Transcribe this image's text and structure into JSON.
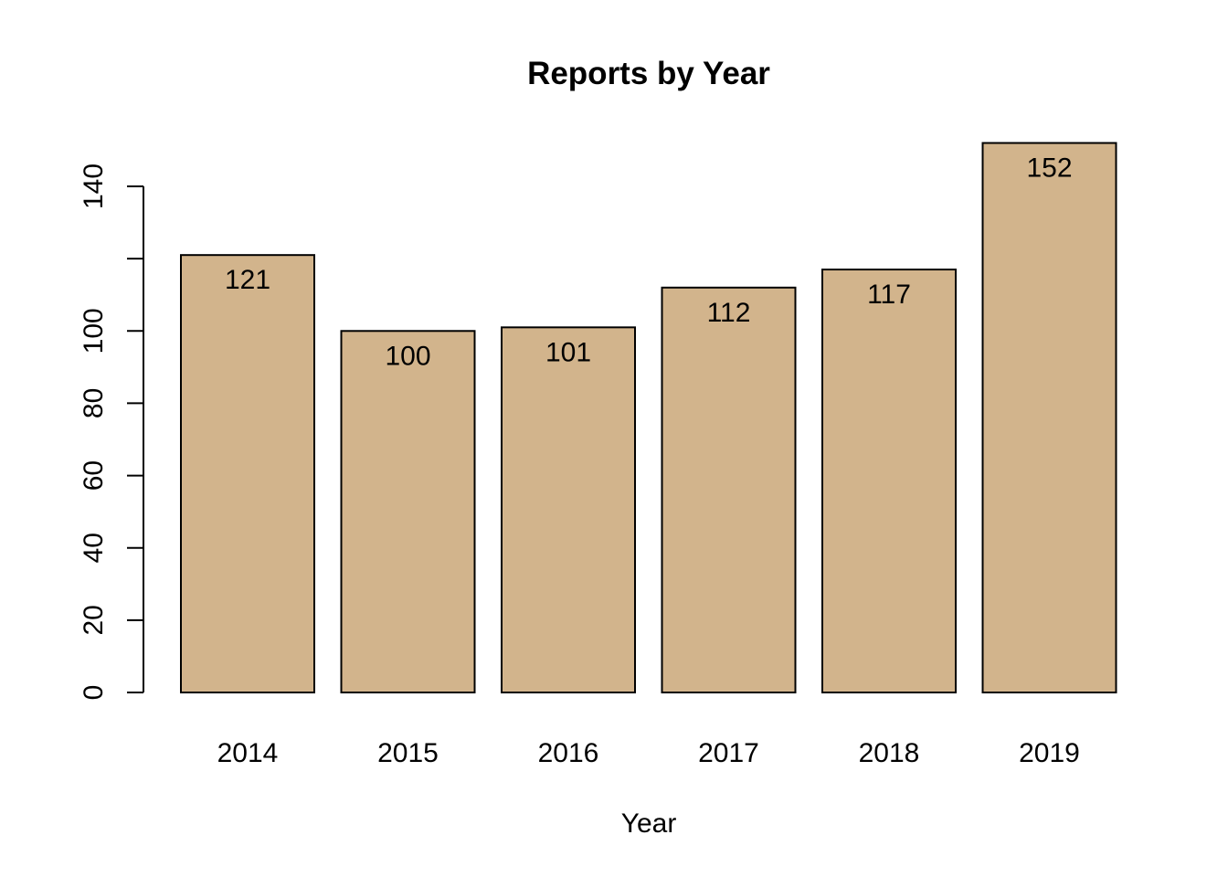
{
  "chart_data": {
    "type": "bar",
    "title": "Reports by Year",
    "xlabel": "Year",
    "ylabel": "",
    "categories": [
      "2014",
      "2015",
      "2016",
      "2017",
      "2018",
      "2019"
    ],
    "values": [
      121,
      100,
      101,
      112,
      117,
      152
    ],
    "data_labels": [
      "121",
      "100",
      "101",
      "112",
      "117",
      "152"
    ],
    "ylim": [
      0,
      140
    ],
    "yticks": [
      0,
      20,
      40,
      60,
      80,
      100,
      120,
      140
    ],
    "ytick_labels": [
      "0",
      "20",
      "40",
      "60",
      "80",
      "100",
      "",
      "140"
    ],
    "grid": false,
    "bar_color": "#d2b48c",
    "bar_edge_color": "#000000"
  }
}
